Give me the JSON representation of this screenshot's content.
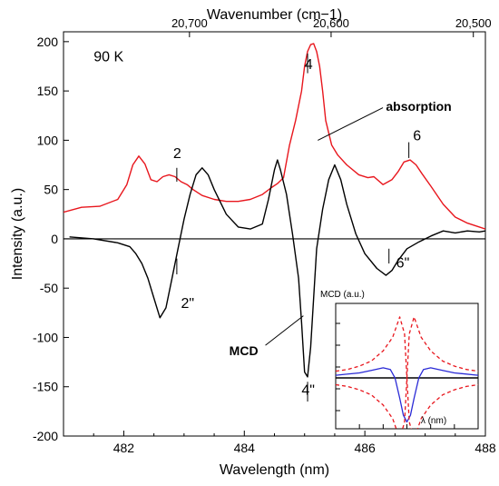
{
  "chart_data": [
    {
      "type": "line",
      "title": "",
      "xlabel": "Wavelength (nm)",
      "ylabel": "Intensity (a.u.)",
      "x2label": "Wavenumber (cm−1)",
      "xlim": [
        481,
        488
      ],
      "ylim": [
        -200,
        210
      ],
      "xticks": [
        482,
        484,
        486,
        488
      ],
      "yticks": [
        -200,
        -150,
        -100,
        -50,
        0,
        50,
        100,
        150,
        200
      ],
      "x2ticks": [
        {
          "label": "20,700",
          "x": 483.09
        },
        {
          "label": "20,600",
          "x": 485.44
        },
        {
          "label": "20,500",
          "x": 487.8
        }
      ],
      "grid": false,
      "legend": "none",
      "series": [
        {
          "name": "absorption",
          "color": "#e8161d",
          "x": [
            481.0,
            481.3,
            481.6,
            481.9,
            482.05,
            482.15,
            482.25,
            482.35,
            482.45,
            482.55,
            482.65,
            482.75,
            482.85,
            482.95,
            483.05,
            483.15,
            483.3,
            483.5,
            483.7,
            483.9,
            484.1,
            484.3,
            484.45,
            484.55,
            484.65,
            484.75,
            484.85,
            484.95,
            485.0,
            485.05,
            485.1,
            485.15,
            485.2,
            485.25,
            485.3,
            485.35,
            485.45,
            485.55,
            485.7,
            485.9,
            486.05,
            486.15,
            486.3,
            486.45,
            486.55,
            486.65,
            486.75,
            486.85,
            486.95,
            487.1,
            487.3,
            487.5,
            487.7,
            487.9,
            488.0
          ],
          "y": [
            27,
            32,
            33,
            40,
            55,
            75,
            84,
            76,
            60,
            58,
            63,
            65,
            63,
            58,
            55,
            50,
            44,
            40,
            38,
            38,
            40,
            45,
            52,
            56,
            62,
            95,
            120,
            150,
            175,
            190,
            197,
            198,
            190,
            175,
            150,
            120,
            95,
            85,
            75,
            65,
            62,
            63,
            55,
            60,
            68,
            78,
            80,
            75,
            66,
            53,
            35,
            22,
            16,
            12,
            10
          ]
        },
        {
          "name": "MCD",
          "color": "#000000",
          "x": [
            481.1,
            481.5,
            481.9,
            482.1,
            482.2,
            482.3,
            482.4,
            482.5,
            482.6,
            482.7,
            482.8,
            482.9,
            483.0,
            483.1,
            483.2,
            483.3,
            483.4,
            483.5,
            483.7,
            483.9,
            484.1,
            484.3,
            484.4,
            484.5,
            484.55,
            484.6,
            484.7,
            484.8,
            484.9,
            484.95,
            485.0,
            485.05,
            485.1,
            485.15,
            485.2,
            485.3,
            485.4,
            485.5,
            485.6,
            485.7,
            485.85,
            486.0,
            486.2,
            486.35,
            486.45,
            486.55,
            486.7,
            486.9,
            487.1,
            487.3,
            487.5,
            487.7,
            487.9,
            488.0
          ],
          "y": [
            2,
            0,
            -4,
            -8,
            -15,
            -25,
            -40,
            -60,
            -80,
            -70,
            -40,
            -10,
            20,
            45,
            65,
            72,
            65,
            50,
            25,
            12,
            10,
            15,
            40,
            70,
            80,
            70,
            45,
            5,
            -40,
            -85,
            -135,
            -140,
            -110,
            -60,
            -10,
            30,
            60,
            75,
            60,
            35,
            5,
            -15,
            -30,
            -37,
            -32,
            -22,
            -10,
            -3,
            3,
            8,
            6,
            8,
            7,
            8
          ]
        }
      ],
      "annotations": [
        {
          "text": "90 K",
          "x": 481.5,
          "y": 180
        },
        {
          "text": "2",
          "x": 482.82,
          "y": 82
        },
        {
          "text": "2\"",
          "x": 482.95,
          "y": -70
        },
        {
          "text": "4",
          "x": 485.0,
          "y": 172
        },
        {
          "text": "4\"",
          "x": 484.95,
          "y": -158
        },
        {
          "text": "6",
          "x": 486.8,
          "y": 100
        },
        {
          "text": "6\"",
          "x": 486.52,
          "y": -29
        },
        {
          "text": "absorption",
          "x": 486.35,
          "y": 130
        },
        {
          "text": "MCD",
          "x": 483.75,
          "y": -118
        }
      ]
    },
    {
      "type": "line",
      "title": "",
      "ylabel": "MCD (a.u.)",
      "xlabel": "λ (nm)",
      "grid": false,
      "legend": "none",
      "series": [
        {
          "name": "",
          "style": "solid",
          "color": "#2a2ad6",
          "x": [
            -3,
            -2,
            -1.5,
            -1,
            -0.7,
            -0.5,
            -0.3,
            -0.15,
            0,
            0.15,
            0.3,
            0.5,
            0.7,
            1,
            1.5,
            2,
            3
          ],
          "y": [
            0.08,
            0.15,
            0.22,
            0.3,
            0.25,
            0.0,
            -0.6,
            -1.1,
            -1.3,
            -1.1,
            -0.6,
            0.0,
            0.25,
            0.3,
            0.22,
            0.15,
            0.08
          ]
        },
        {
          "name": "",
          "style": "dashed",
          "color": "#e8161d",
          "x": [
            -3,
            -2.5,
            -2,
            -1.5,
            -1,
            -0.6,
            -0.3,
            -0.1,
            0.1,
            0.3,
            0.6,
            1,
            1.5,
            2,
            2.5,
            3
          ],
          "y": [
            0.2,
            0.25,
            0.35,
            0.5,
            0.8,
            1.2,
            1.8,
            1.3,
            -1.3,
            -1.8,
            -1.2,
            -0.8,
            -0.5,
            -0.35,
            -0.25,
            -0.2
          ]
        },
        {
          "name": "",
          "style": "dashed",
          "color": "#e8161d",
          "x": [
            -3,
            -2.5,
            -2,
            -1.5,
            -1,
            -0.6,
            -0.3,
            -0.1,
            0.1,
            0.3,
            0.6,
            1,
            1.5,
            2,
            2.5,
            3
          ],
          "y": [
            -0.2,
            -0.25,
            -0.35,
            -0.5,
            -0.8,
            -1.2,
            -1.8,
            -1.3,
            1.3,
            1.8,
            1.2,
            0.8,
            0.5,
            0.35,
            0.25,
            0.2
          ]
        }
      ]
    }
  ]
}
